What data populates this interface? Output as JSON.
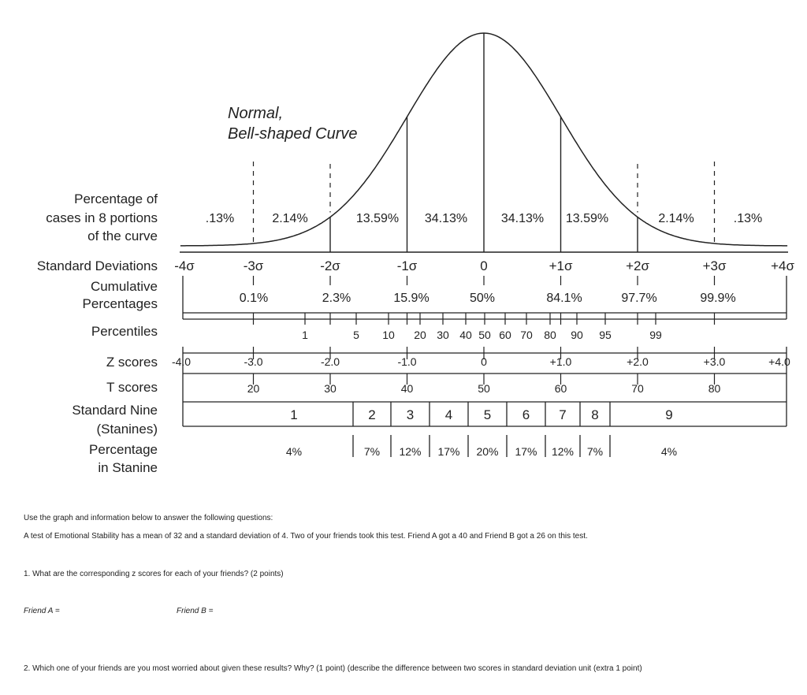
{
  "figure": {
    "curve_title_line1": "Normal,",
    "curve_title_line2": "Bell-shaped Curve",
    "row_labels": {
      "percentage_of": "Percentage of",
      "cases_in_8": "cases in 8 portions",
      "of_the_curve": "of the curve",
      "standard_deviations": "Standard Deviations",
      "cumulative": "Cumulative",
      "percentages": "Percentages",
      "percentiles": "Percentiles",
      "z_scores": "Z scores",
      "t_scores": "T scores",
      "standard_nine": "Standard Nine",
      "stanines_paren": "(Stanines)",
      "percentage": "Percentage",
      "in_stanine": "in Stanine"
    },
    "portion_percentages": [
      ".13%",
      "2.14%",
      "13.59%",
      "34.13%",
      "34.13%",
      "13.59%",
      "2.14%",
      ".13%"
    ],
    "sd_labels": [
      "-4σ",
      "-3σ",
      "-2σ",
      "-1σ",
      "0",
      "+1σ",
      "+2σ",
      "+3σ",
      "+4σ"
    ],
    "cumulative_percentages": [
      "0.1%",
      "2.3%",
      "15.9%",
      "50%",
      "84.1%",
      "97.7%",
      "99.9%"
    ],
    "percentiles": [
      "1",
      "5",
      "10",
      "20",
      "30",
      "40",
      "50",
      "60",
      "70",
      "80",
      "90",
      "95",
      "99"
    ],
    "z_scores": [
      "-4.0",
      "-3.0",
      "-2.0",
      "-1.0",
      "0",
      "+1.0",
      "+2.0",
      "+3.0",
      "+4.0"
    ],
    "t_scores": [
      "20",
      "30",
      "40",
      "50",
      "60",
      "70",
      "80"
    ],
    "stanines": [
      "1",
      "2",
      "3",
      "4",
      "5",
      "6",
      "7",
      "8",
      "9"
    ],
    "stanine_percentages": [
      "4%",
      "7%",
      "12%",
      "17%",
      "20%",
      "17%",
      "12%",
      "7%",
      "4%"
    ]
  },
  "instructions": "Use the graph and information below to answer the following questions:",
  "problem": "A test of Emotional Stability has a mean of 32 and a standard deviation of 4. Two of your friends took this test. Friend A got a 40 and Friend B got a 26 on this test.",
  "question1": "1. What are the corresponding z scores for each of your friends? (2 points)",
  "friend_a": "Friend A =",
  "friend_b": "Friend B =",
  "question2": "2. Which one of your friends are you most worried about given these results? Why? (1 point) (describe the difference between two scores in standard deviation unit (extra 1 point)"
}
